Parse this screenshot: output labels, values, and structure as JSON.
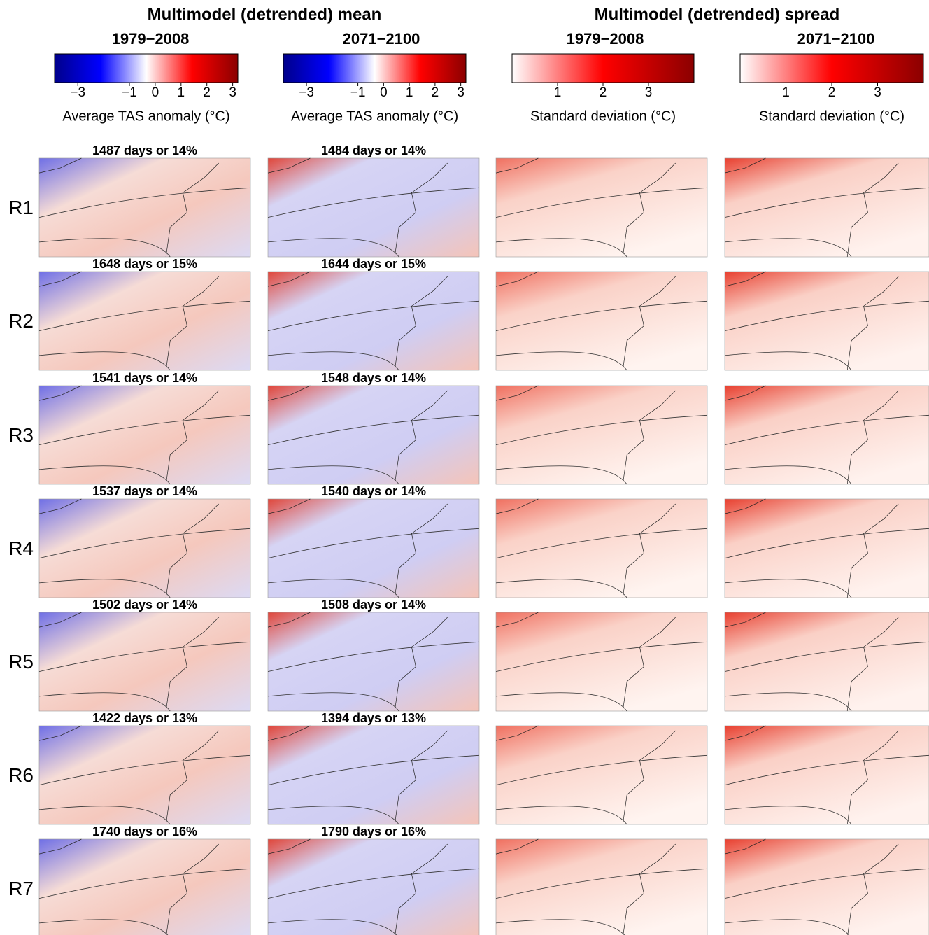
{
  "groups": [
    {
      "title": "Multimodel (detrended) mean",
      "periods": [
        "1979−2008",
        "2071−2100"
      ]
    },
    {
      "title": "Multimodel (detrended) spread",
      "periods": [
        "1979−2008",
        "2071−2100"
      ]
    }
  ],
  "colorbars": [
    {
      "label": "Average TAS anomaly (°C)",
      "lim": [
        -3.9,
        3.2
      ],
      "colors": [
        "#00008b",
        "#0000ff",
        "#ffffff",
        "#ff0000",
        "#8b0000"
      ],
      "ticks": [
        {
          "value": -3,
          "label": "−3"
        },
        {
          "value": -1,
          "label": "−1"
        },
        0,
        1,
        2,
        3
      ]
    },
    {
      "label": "Average TAS anomaly (°C)",
      "lim": [
        -3.9,
        3.2
      ],
      "colors": [
        "#00008b",
        "#0000ff",
        "#ffffff",
        "#ff0000",
        "#8b0000"
      ],
      "ticks": [
        {
          "value": -3,
          "label": "−3"
        },
        {
          "value": -1,
          "label": "−1"
        },
        0,
        1,
        2,
        3
      ]
    },
    {
      "label": "Standard deviation (°C)",
      "lim": [
        0,
        4
      ],
      "colors": [
        "#ffffff",
        "#ff0000",
        "#8b0000"
      ],
      "ticks": [
        1,
        2,
        3
      ]
    },
    {
      "label": "Standard deviation (°C)",
      "lim": [
        0,
        4
      ],
      "colors": [
        "#ffffff",
        "#ff0000",
        "#8b0000"
      ],
      "ticks": [
        1,
        2,
        3
      ]
    }
  ],
  "rows": [
    {
      "label": "R1",
      "panels": [
        "1487 days or 14%",
        "1484 days or 14%"
      ]
    },
    {
      "label": "R2",
      "panels": [
        "1648 days or 15%",
        "1644 days or 15%"
      ]
    },
    {
      "label": "R3",
      "panels": [
        "1541 days or 14%",
        "1548 days or 14%"
      ]
    },
    {
      "label": "R4",
      "panels": [
        "1537 days or 14%",
        "1540 days or 14%"
      ]
    },
    {
      "label": "R5",
      "panels": [
        "1502 days or 14%",
        "1508 days or 14%"
      ]
    },
    {
      "label": "R6",
      "panels": [
        "1422 days or 13%",
        "1394 days or 13%"
      ]
    },
    {
      "label": "R7",
      "panels": [
        "1740 days or 16%",
        "1790 days or 16%"
      ]
    }
  ]
}
